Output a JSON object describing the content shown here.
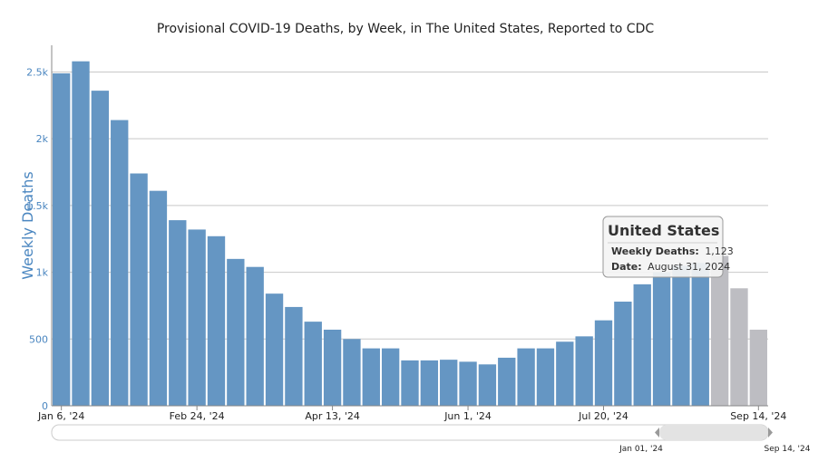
{
  "chart_data": {
    "type": "bar",
    "title": "Provisional COVID-19 Deaths, by Week, in The United States, Reported to CDC",
    "ylabel": "Weekly Deaths",
    "xlabel": "",
    "ylim": [
      0,
      2700
    ],
    "yticks": [
      0,
      500,
      1000,
      1500,
      2000,
      2500
    ],
    "ytick_labels": [
      "0",
      "500",
      "1k",
      "1.5k",
      "2k",
      "2.5k"
    ],
    "x_tick_labels": [
      {
        "index": 0,
        "label": "Jan 6, '24"
      },
      {
        "index": 7,
        "label": "Feb 24, '24"
      },
      {
        "index": 14,
        "label": "Apr 13, '24"
      },
      {
        "index": 21,
        "label": "Jun 1, '24"
      },
      {
        "index": 28,
        "label": "Jul 20, '24"
      },
      {
        "index": 36,
        "label": "Sep 14, '24"
      }
    ],
    "grid": true,
    "series": [
      {
        "values": [
          2490,
          2580,
          2360,
          2140,
          1740,
          1610,
          1390,
          1320,
          1270,
          1100,
          1040,
          840,
          740,
          630,
          570,
          500,
          430,
          430,
          340,
          340,
          345,
          330,
          310,
          360,
          430,
          430,
          480,
          520,
          640,
          780,
          910,
          1000,
          1050,
          1070,
          1123,
          880,
          570
        ],
        "dates": [
          "Jan 6, '24",
          "Jan 13, '24",
          "Jan 20, '24",
          "Jan 27, '24",
          "Feb 3, '24",
          "Feb 10, '24",
          "Feb 17, '24",
          "Feb 24, '24",
          "Mar 2, '24",
          "Mar 9, '24",
          "Mar 16, '24",
          "Mar 23, '24",
          "Mar 30, '24",
          "Apr 6, '24",
          "Apr 13, '24",
          "Apr 20, '24",
          "Apr 27, '24",
          "May 4, '24",
          "May 11, '24",
          "May 18, '24",
          "May 25, '24",
          "Jun 1, '24",
          "Jun 8, '24",
          "Jun 15, '24",
          "Jun 22, '24",
          "Jun 29, '24",
          "Jul 6, '24",
          "Jul 13, '24",
          "Jul 20, '24",
          "Jul 27, '24",
          "Aug 3, '24",
          "Aug 10, '24",
          "Aug 17, '24",
          "Aug 24, '24",
          "Aug 31, '24",
          "Sep 7, '24",
          "Sep 14, '24"
        ],
        "provisional_from_index": 34
      }
    ]
  },
  "tooltip": {
    "title": "United States",
    "line1_label": "Weekly Deaths:",
    "line1_value": "1,123",
    "line2_label": "Date:",
    "line2_value": "August 31, 2024"
  },
  "navigator": {
    "start_label": "Jan 01, '24",
    "end_label": "Sep 14, '24"
  },
  "colors": {
    "bar": "#6596c3",
    "bar_provisional": "#bdbdc2",
    "axis_label": "#4a86c0",
    "grid": "#c8c8c8"
  }
}
